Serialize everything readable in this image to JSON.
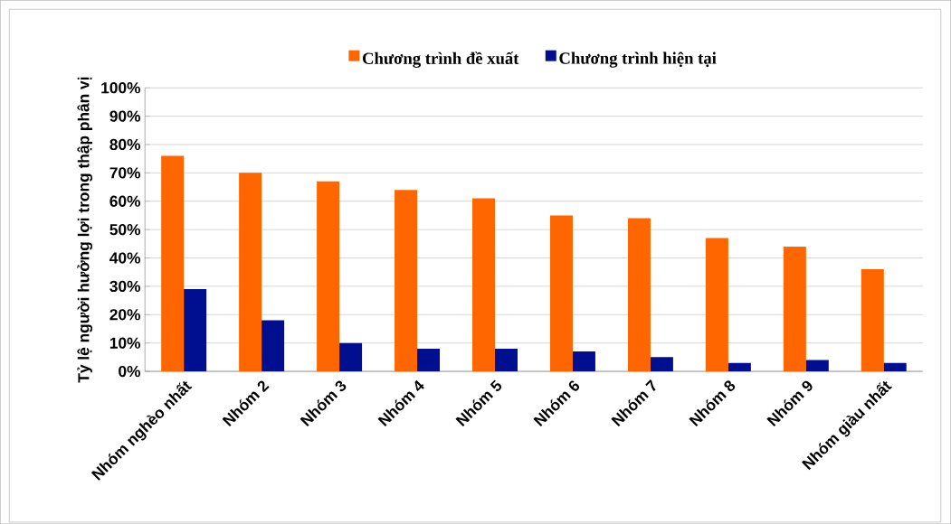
{
  "chart_data": {
    "type": "bar",
    "ylabel": "Tỷ lệ người hưởng lợi trong thập phân vị",
    "categories": [
      "Nhóm nghèo nhất",
      "Nhóm 2",
      "Nhóm 3",
      "Nhóm 4",
      "Nhóm 5",
      "Nhóm 6",
      "Nhóm 7",
      "Nhóm 8",
      "Nhóm 9",
      "Nhóm giàu nhất"
    ],
    "series": [
      {
        "name": "Chương trình  đề xuất",
        "color": "#ff6600",
        "values": [
          76,
          70,
          67,
          64,
          61,
          55,
          54,
          47,
          44,
          36
        ]
      },
      {
        "name": "Chương trình  hiện tại",
        "color": "#000f8f",
        "values": [
          29,
          18,
          10,
          8,
          8,
          7,
          5,
          3,
          4,
          3
        ]
      }
    ],
    "ylim": [
      0,
      100
    ],
    "yticks": [
      {
        "value": 0,
        "label": "0%"
      },
      {
        "value": 10,
        "label": "10%"
      },
      {
        "value": 20,
        "label": "20%"
      },
      {
        "value": 30,
        "label": "30%"
      },
      {
        "value": 40,
        "label": "40%"
      },
      {
        "value": 50,
        "label": "50%"
      },
      {
        "value": 60,
        "label": "60%"
      },
      {
        "value": 70,
        "label": "70%"
      },
      {
        "value": 80,
        "label": "80%"
      },
      {
        "value": 90,
        "label": "90%"
      },
      {
        "value": 100,
        "label": "100%"
      }
    ],
    "grid": "y",
    "legend": "top"
  }
}
